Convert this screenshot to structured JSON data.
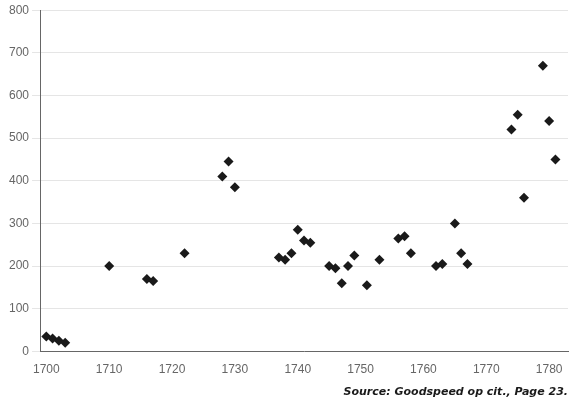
{
  "chart_data": {
    "type": "scatter",
    "annotation": "Source: Goodspeed op cit., Page 23.",
    "x": [
      1700,
      1701,
      1702,
      1703,
      1710,
      1716,
      1717,
      1722,
      1728,
      1729,
      1730,
      1737,
      1738,
      1739,
      1740,
      1741,
      1742,
      1745,
      1746,
      1747,
      1748,
      1749,
      1751,
      1753,
      1756,
      1757,
      1758,
      1762,
      1763,
      1765,
      1766,
      1767,
      1774,
      1775,
      1776,
      1779,
      1780,
      1781
    ],
    "values": [
      35,
      30,
      25,
      20,
      200,
      170,
      165,
      230,
      410,
      445,
      385,
      220,
      215,
      230,
      285,
      260,
      255,
      200,
      195,
      160,
      200,
      225,
      155,
      215,
      265,
      270,
      230,
      200,
      205,
      300,
      230,
      205,
      520,
      555,
      360,
      670,
      540,
      450
    ],
    "color": "#1a1a1a",
    "marker": "diamond",
    "xlim": [
      1699,
      1783
    ],
    "xticks": [
      1700,
      1710,
      1720,
      1730,
      1740,
      1750,
      1760,
      1770,
      1780
    ],
    "ylim": [
      0,
      800
    ],
    "yticks": [
      0,
      100,
      200,
      300,
      400,
      500,
      600,
      700,
      800
    ],
    "grid": "y"
  }
}
